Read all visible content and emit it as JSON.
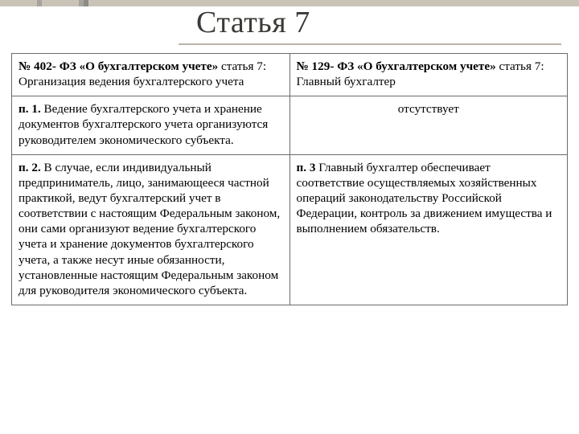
{
  "title": "Статья 7",
  "colors": {
    "background": "#ffffff",
    "text": "#000000",
    "title_color": "#3b3a36",
    "border": "#6b6b6b",
    "accent_bar": "#c9c3b8",
    "accent_bar_dark": "#a7a49d",
    "underline": "#b9b4a8"
  },
  "typography": {
    "title_fontsize": 38,
    "body_fontsize": 15,
    "font_family": "Georgia / Times-like serif"
  },
  "table": {
    "type": "table",
    "columns": 2,
    "column_widths": [
      "50%",
      "50%"
    ],
    "rows": [
      {
        "left": {
          "lead": "№ 402- ФЗ «О бухгалтерском учете» ",
          "rest": "статья 7: Организация ведения бухгалтерского учета"
        },
        "right": {
          "lead": "№ 129- ФЗ «О бухгалтерском учете» ",
          "rest": "статья 7: Главный бухгалтер"
        }
      },
      {
        "left": {
          "lead": "п. 1. ",
          "rest": "Ведение бухгалтерского учета и хранение документов бухгалтерского учета организуются руководителем экономического субъекта."
        },
        "right": {
          "center": true,
          "lead": "",
          "rest": "отсутствует"
        }
      },
      {
        "left": {
          "lead": "п. 2. ",
          "rest": "В случае, если индивидуальный предприниматель, лицо, занимающееся частной практикой, ведут бухгалтерский учет в соответствии с настоящим Федеральным законом, они сами организуют ведение бухгалтерского учета и хранение документов бухгалтерского учета, а также несут иные обязанности, установленные настоящим Федеральным законом для руководителя экономического субъекта."
        },
        "right": {
          "lead": "п. 3 ",
          "rest": "Главный бухгалтер обеспечивает соответствие осуществляемых хозяйственных операций законодательству Российской Федерации, контроль за движением имущества и выполнением обязательств."
        }
      }
    ]
  }
}
